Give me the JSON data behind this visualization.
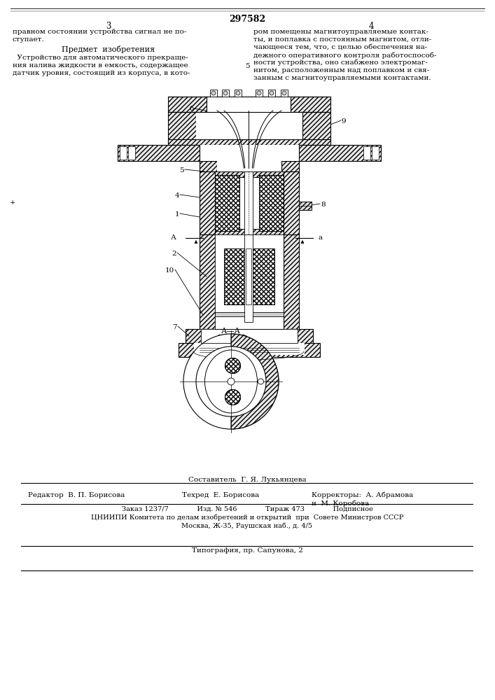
{
  "patent_number": "297582",
  "page_left": "3",
  "page_right": "4",
  "top_text_left1": "правном состоянии устройства сигнал не по-",
  "top_text_left2": "ступает.",
  "subject_title": "Предмет  изобретения",
  "left_col": [
    "  Устройство для автоматического прекраще-",
    "ния налива жидкости в емкость, содержащее",
    "датчик уровня, состоящий из корпуса, в кото-"
  ],
  "right_col": [
    "ром помещены магнитоуправляемые контак-",
    "ты, и поплавка с постоянным магнитом, отли-",
    "чающееся тем, что, с целью обеспечения на-",
    "дежного оперативного контроля работоспособ-",
    "ности устройства, оно снабжено электромаг-",
    "нитом, расположенным над поплавком и свя-",
    "занным с магнитоуправляемыми контактами."
  ],
  "bottom_composer": "Составитель  Г. Я. Лукьянцева",
  "bottom_editor": "Редактор  В. П. Борисова",
  "bottom_tech": "Техред  Е. Борисова",
  "bottom_corrector1": "Корректоры:  А. Абрамова",
  "bottom_corrector2": "и  М. Коробова",
  "bottom_order": "Заказ 1237/7             Изд. № 546             Тираж 473             Подписное",
  "bottom_institute": "ЦНИИПИ Комитета по делам изобретений и открытий  при  Совете Министров СССР",
  "bottom_address": "Москва, Ж-35, Раушская наб., д. 4/5",
  "bottom_print": "Типография, пр. Сапунова, 2",
  "hatch_color": "#000000",
  "bg_color": "#ffffff"
}
